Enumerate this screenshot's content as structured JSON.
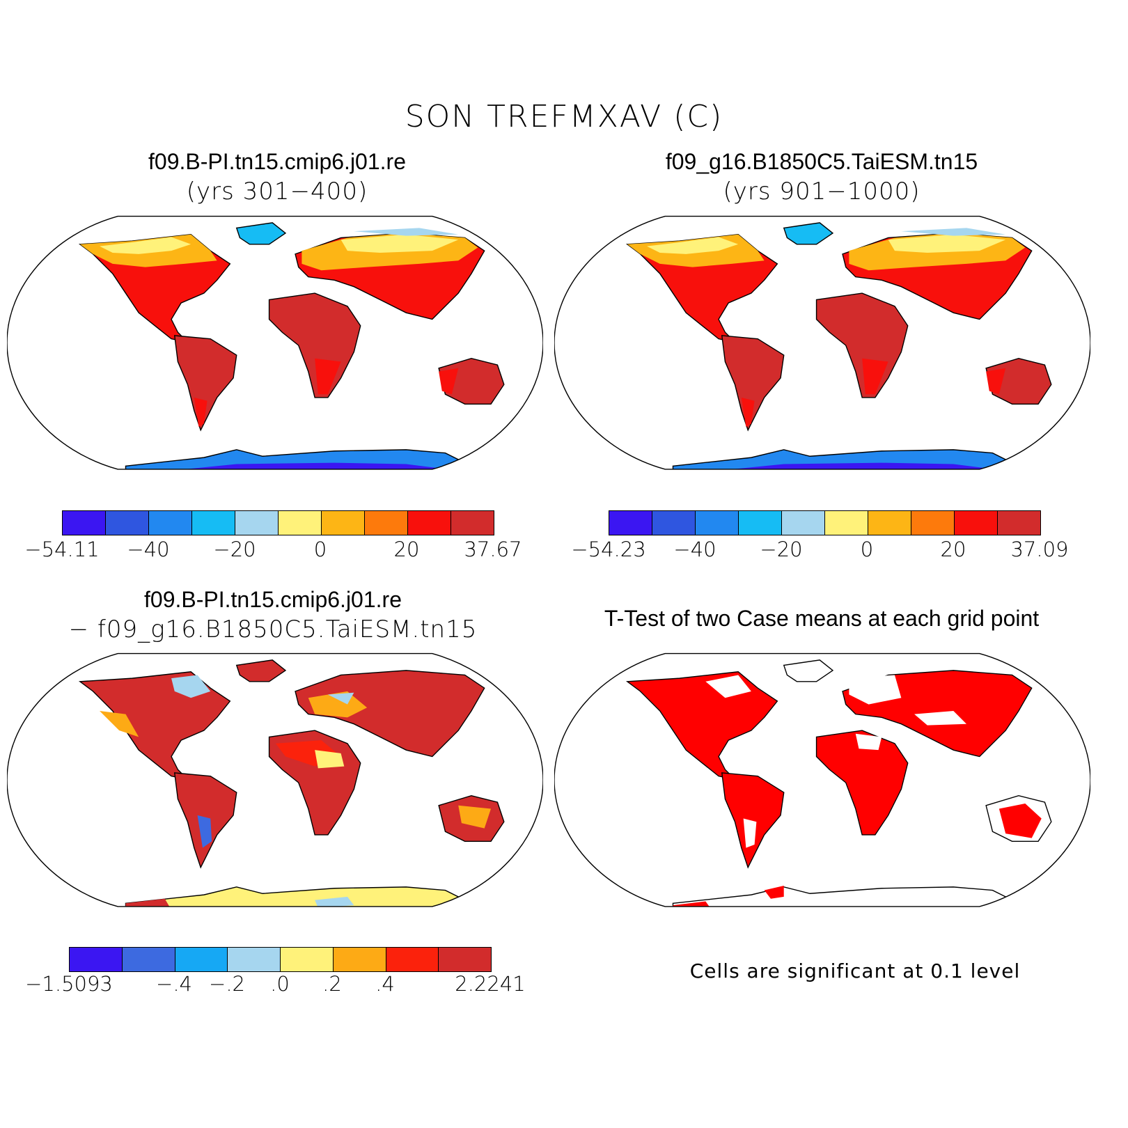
{
  "title": "SON TREFMXAV (C)",
  "panels": [
    {
      "case": "f09.B-PI.tn15.cmip6.j01.re",
      "years": "(yrs 301−400)"
    },
    {
      "case": "f09_g16.B1850C5.TaiESM.tn15",
      "years": "(yrs 901−1000)"
    },
    {
      "case": "f09.B-PI.tn15.cmip6.j01.re",
      "years": "− f09_g16.B1850C5.TaiESM.tn15"
    },
    {
      "case": "T-Test of two Case means at each grid point"
    }
  ],
  "colorbars": {
    "abs_colors": [
      "#3b16f2",
      "#2f56e0",
      "#2288f0",
      "#16bcf4",
      "#a6d6ef",
      "#fff27a",
      "#fdb515",
      "#fd7a0c",
      "#f8100c",
      "#d22c2c"
    ],
    "diff_colors": [
      "#3b16f2",
      "#3d6ae0",
      "#16a8f4",
      "#a6d6ef",
      "#fff27a",
      "#fdaa15",
      "#fb220c",
      "#d22c2c"
    ],
    "abs1_ticks": [
      "−54.11",
      "−40",
      "−20",
      "0",
      "20",
      "37.67"
    ],
    "abs2_ticks": [
      "−54.23",
      "−40",
      "−20",
      "0",
      "20",
      "37.09"
    ],
    "diff_ticks": [
      "−1.5093",
      "−.4",
      "−.2",
      ".0",
      ".2",
      ".4",
      "2.2241"
    ]
  },
  "significance_note": "Cells are significant at 0.1 level",
  "icons": {
    "map": "world-map-robinson"
  }
}
